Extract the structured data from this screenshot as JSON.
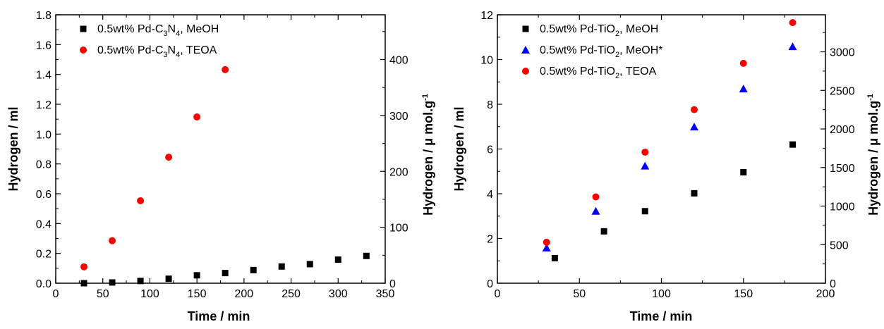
{
  "chart_data": [
    {
      "type": "scatter",
      "xlabel": "Time / min",
      "ylabel": "Hydrogen / ml",
      "y2label": "Hydrogen / μ mol.g",
      "y2label_sup": "-1",
      "xlim": [
        0,
        350
      ],
      "ylim": [
        0,
        1.8
      ],
      "y2lim": [
        0,
        480
      ],
      "xticks": [
        "0",
        "50",
        "100",
        "150",
        "200",
        "250",
        "300",
        "350"
      ],
      "yticks": [
        "0.0",
        "0.2",
        "0.4",
        "0.6",
        "0.8",
        "1.0",
        "1.2",
        "1.4",
        "1.6",
        "1.8"
      ],
      "y2ticks": [
        "0",
        "100",
        "200",
        "300",
        "400"
      ],
      "grid": false,
      "legend_position": "top-left",
      "series": [
        {
          "label": [
            "0.5wt% Pd-C",
            "3",
            "N",
            "4",
            ", MeOH"
          ],
          "marker": "square",
          "color": "#000000",
          "x": [
            30,
            60,
            90,
            120,
            150,
            180,
            210,
            240,
            270,
            300,
            330
          ],
          "y": [
            0.0,
            0.005,
            0.015,
            0.03,
            0.053,
            0.068,
            0.088,
            0.112,
            0.128,
            0.158,
            0.183
          ]
        },
        {
          "label": [
            "0.5wt% Pd-C",
            "3",
            "N",
            "4",
            ", TEOA"
          ],
          "marker": "circle",
          "color": "#ff0000",
          "x": [
            30,
            60,
            90,
            120,
            150,
            180
          ],
          "y": [
            0.11,
            0.285,
            0.553,
            0.845,
            1.115,
            1.432
          ]
        }
      ]
    },
    {
      "type": "scatter",
      "xlabel": "Time / min",
      "ylabel": "Hydrogen / ml",
      "y2label": "Hydrogen / μ mol.g",
      "y2label_sup": "-1",
      "xlim": [
        0,
        200
      ],
      "ylim": [
        0,
        12
      ],
      "y2lim": [
        0,
        3480
      ],
      "xticks": [
        "0",
        "50",
        "100",
        "150",
        "200"
      ],
      "yticks": [
        "0",
        "2",
        "4",
        "6",
        "8",
        "10",
        "12"
      ],
      "y2ticks": [
        "0",
        "500",
        "1000",
        "1500",
        "2000",
        "2500",
        "3000"
      ],
      "grid": false,
      "legend_position": "top-left",
      "series": [
        {
          "label": [
            "0.5wt% Pd-TiO",
            "2",
            ", MeOH"
          ],
          "marker": "square",
          "color": "#000000",
          "x": [
            35,
            65,
            90,
            120,
            150,
            180
          ],
          "y": [
            1.12,
            2.32,
            3.22,
            4.02,
            4.96,
            6.2
          ]
        },
        {
          "label": [
            "0.5wt% Pd-TiO",
            "2",
            ", MeOH*"
          ],
          "marker": "triangle",
          "color": "#0000ff",
          "x": [
            30,
            60,
            90,
            120,
            150,
            180
          ],
          "y": [
            1.58,
            3.22,
            5.24,
            6.99,
            8.69,
            10.58
          ]
        },
        {
          "label": [
            "0.5wt% Pd-TiO",
            "2",
            ", TEOA"
          ],
          "marker": "circle",
          "color": "#ff0000",
          "x": [
            30,
            60,
            90,
            120,
            150,
            180
          ],
          "y": [
            1.83,
            3.86,
            5.86,
            7.76,
            9.83,
            11.65
          ]
        }
      ]
    }
  ]
}
